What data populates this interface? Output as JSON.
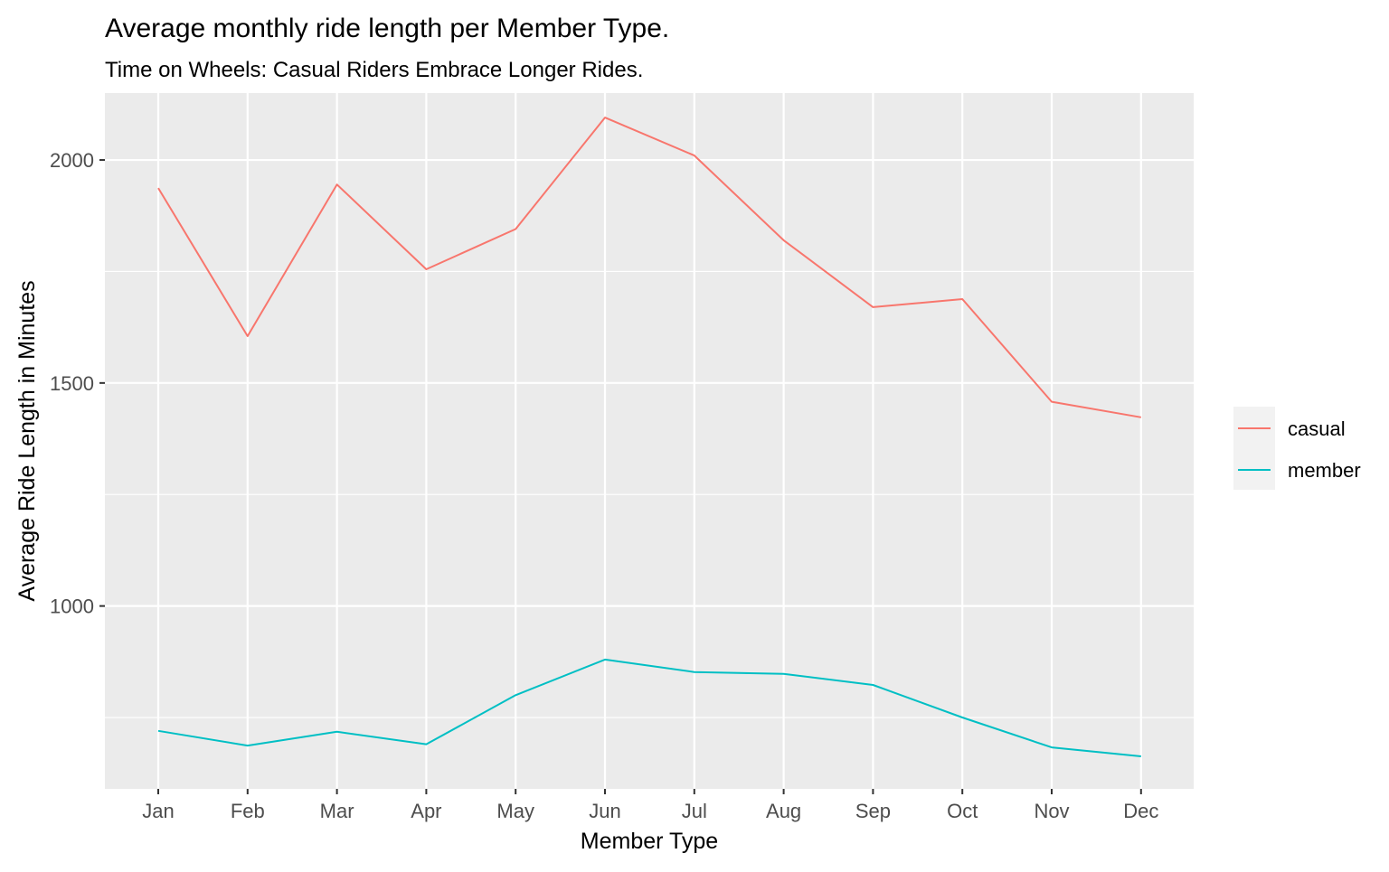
{
  "chart_data": {
    "type": "line",
    "title": "Average monthly ride length per Member Type.",
    "subtitle": "Time on Wheels: Casual Riders Embrace Longer Rides.",
    "xlabel": "Member Type",
    "ylabel": "Average Ride Length in Minutes",
    "categories": [
      "Jan",
      "Feb",
      "Mar",
      "Apr",
      "May",
      "Jun",
      "Jul",
      "Aug",
      "Sep",
      "Oct",
      "Nov",
      "Dec"
    ],
    "ylim": [
      590,
      2150
    ],
    "yticks": [
      1000,
      1500,
      2000
    ],
    "grid": true,
    "legend_position": "right",
    "series": [
      {
        "name": "casual",
        "color": "#F8766D",
        "values": [
          1937,
          1605,
          1945,
          1755,
          1845,
          2095,
          2010,
          1820,
          1670,
          1688,
          1458,
          1423
        ]
      },
      {
        "name": "member",
        "color": "#00BFC4",
        "values": [
          720,
          687,
          718,
          690,
          800,
          880,
          852,
          848,
          823,
          750,
          683,
          663
        ]
      }
    ]
  }
}
